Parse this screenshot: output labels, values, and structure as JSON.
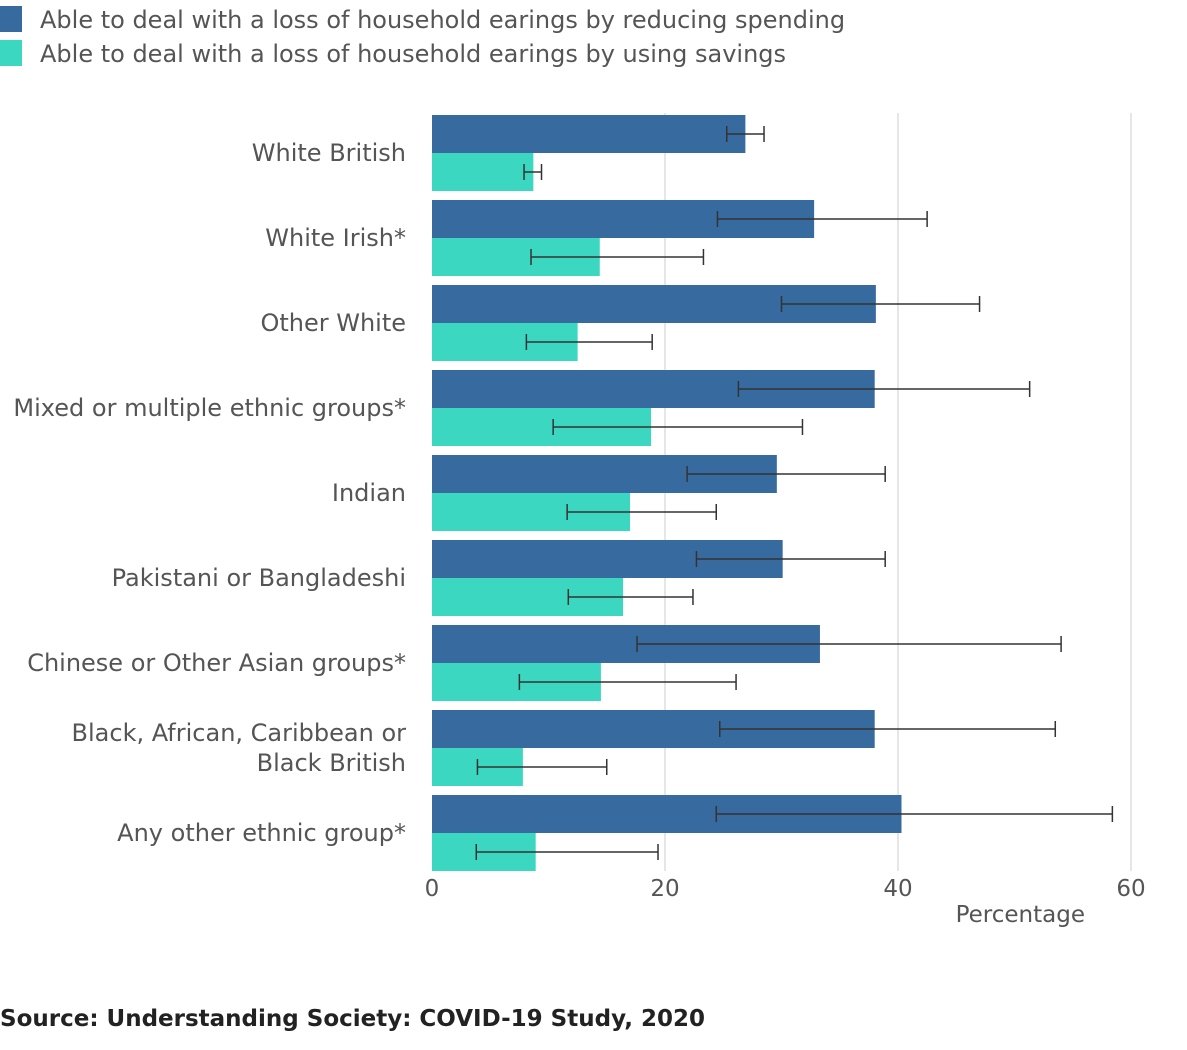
{
  "chart_data": {
    "type": "bar",
    "orientation": "horizontal",
    "categories": [
      "White British",
      "White Irish*",
      "Other White",
      "Mixed or multiple ethnic groups*",
      "Indian",
      "Pakistani or Bangladeshi",
      "Chinese or Other Asian groups*",
      "Black, African, Caribbean or Black British",
      "Any other ethnic group*"
    ],
    "category_lines": [
      [
        "White British"
      ],
      [
        "White Irish*"
      ],
      [
        "Other White"
      ],
      [
        "Mixed or multiple ethnic groups*"
      ],
      [
        "Indian"
      ],
      [
        "Pakistani or Bangladeshi"
      ],
      [
        "Chinese or Other Asian groups*"
      ],
      [
        "Black, African, Caribbean or",
        "Black British"
      ],
      [
        "Any other ethnic group*"
      ]
    ],
    "series": [
      {
        "name": "Able to deal with a loss of household earings by reducing spending",
        "color": "#376b9f",
        "values": [
          26.9,
          32.8,
          38.1,
          38.0,
          29.6,
          30.1,
          33.3,
          38.0,
          40.3
        ],
        "error_low": [
          25.3,
          24.5,
          30.0,
          26.3,
          21.9,
          22.7,
          17.6,
          24.7,
          24.4
        ],
        "error_high": [
          28.5,
          42.5,
          47.0,
          51.3,
          38.9,
          38.9,
          54.0,
          53.5,
          58.4
        ]
      },
      {
        "name": "Able to deal with a loss of household earings by using savings",
        "color": "#3cd7c0",
        "values": [
          8.7,
          14.4,
          12.5,
          18.8,
          17.0,
          16.4,
          14.5,
          7.8,
          8.9
        ],
        "error_low": [
          7.9,
          8.5,
          8.1,
          10.4,
          11.6,
          11.7,
          7.5,
          3.9,
          3.8
        ],
        "error_high": [
          9.4,
          23.3,
          18.9,
          31.8,
          24.4,
          22.4,
          26.1,
          15.0,
          19.4
        ]
      }
    ],
    "xlabel": "Percentage",
    "xlim": [
      0,
      60
    ],
    "xticks": [
      0,
      20,
      40,
      60
    ],
    "grid": true,
    "legend_position": "top-left"
  },
  "source": "Source: Understanding Society: COVID-19 Study, 2020"
}
